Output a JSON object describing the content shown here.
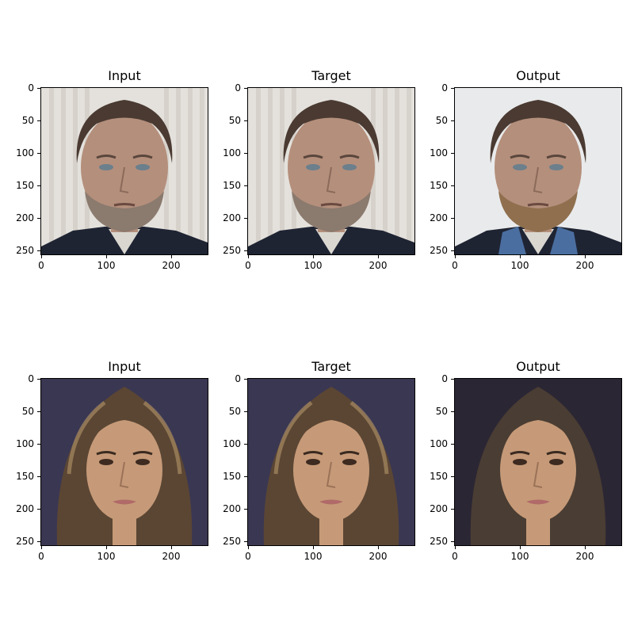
{
  "rows": [
    {
      "subject": "man",
      "panels": [
        {
          "title": "Input"
        },
        {
          "title": "Target"
        },
        {
          "title": "Output"
        }
      ]
    },
    {
      "subject": "woman",
      "panels": [
        {
          "title": "Input"
        },
        {
          "title": "Target"
        },
        {
          "title": "Output"
        }
      ]
    }
  ],
  "axes": {
    "y_ticks": [
      "0",
      "50",
      "100",
      "150",
      "200",
      "250"
    ],
    "x_ticks": [
      "0",
      "100",
      "200"
    ]
  },
  "colors": {
    "man_bg": "#e4e1dc",
    "man_skin": "#b48f7c",
    "man_hair": "#4a3a32",
    "man_beard": "#8b7a6e",
    "man_jacket": "#1f2433",
    "man_shirt": "#d9d7d0",
    "woman_bg": "#3a3752",
    "woman_skin": "#c69a78",
    "woman_hair": "#5b4634",
    "output_man_bg": "#e9eaeb",
    "output_woman_bg": "#2b2634"
  }
}
